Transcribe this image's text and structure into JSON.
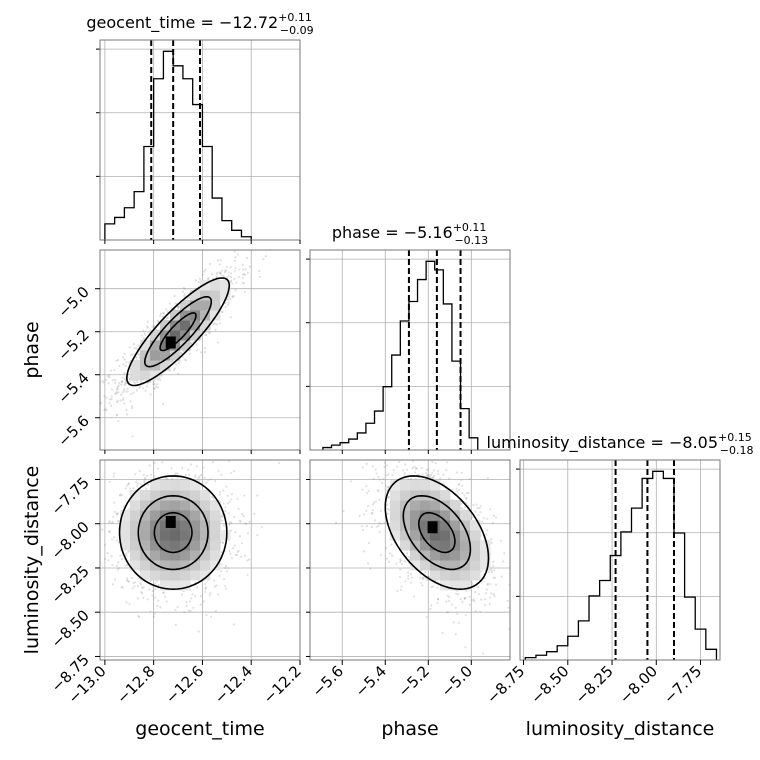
{
  "chart_data": {
    "type": "corner",
    "grid": true,
    "parameters": [
      "geocent_time",
      "phase",
      "luminosity_distance"
    ],
    "axis_labels": {
      "geocent_time": "geocent_time",
      "phase": "phase",
      "luminosity_distance": "luminosity_distance"
    },
    "ranges": {
      "geocent_time": [
        -13.02,
        -12.2
      ],
      "phase": [
        -5.75,
        -4.82
      ],
      "luminosity_distance": [
        -8.77,
        -7.64
      ]
    },
    "ticks": {
      "geocent_time": [
        -13.0,
        -12.8,
        -12.6,
        -12.4,
        -12.2
      ],
      "phase": [
        -5.6,
        -5.4,
        -5.2,
        -5.0
      ],
      "luminosity_distance": [
        -8.75,
        -8.5,
        -8.25,
        -8.0,
        -7.75
      ]
    },
    "tick_labels": {
      "geocent_time": [
        "−13.0",
        "−12.8",
        "−12.6",
        "−12.4",
        "−12.2"
      ],
      "phase": [
        "−5.6",
        "−5.4",
        "−5.2",
        "−5.0"
      ],
      "luminosity_distance": [
        "−8.75",
        "−8.50",
        "−8.25",
        "−8.00",
        "−7.75"
      ]
    },
    "titles": {
      "geocent_time": {
        "main": "geocent_time = −12.72",
        "sup": "+0.11",
        "sub": "−0.09"
      },
      "phase": {
        "main": "phase = −5.16",
        "sup": "+0.11",
        "sub": "−0.13"
      },
      "luminosity_distance": {
        "main": "luminosity_distance = −8.05",
        "sup": "+0.15",
        "sub": "−0.18"
      }
    },
    "quantiles": {
      "geocent_time": [
        -12.81,
        -12.72,
        -12.61
      ],
      "phase": [
        -5.29,
        -5.16,
        -5.05
      ],
      "luminosity_distance": [
        -8.23,
        -8.05,
        -7.9
      ]
    },
    "histograms": {
      "geocent_time": {
        "edges": [
          -13.0,
          -12.96,
          -12.92,
          -12.88,
          -12.84,
          -12.8,
          -12.76,
          -12.72,
          -12.68,
          -12.64,
          -12.6,
          -12.56,
          -12.52,
          -12.48,
          -12.44,
          -12.4
        ],
        "counts": [
          0.1,
          0.14,
          0.2,
          0.3,
          0.58,
          1.0,
          1.17,
          1.08,
          1.0,
          0.84,
          0.58,
          0.26,
          0.12,
          0.06,
          0.02
        ]
      },
      "phase": {
        "edges": [
          -5.69,
          -5.65,
          -5.61,
          -5.57,
          -5.53,
          -5.49,
          -5.45,
          -5.41,
          -5.37,
          -5.33,
          -5.29,
          -5.25,
          -5.21,
          -5.17,
          -5.13,
          -5.09,
          -5.05,
          -5.01,
          -4.97
        ],
        "counts": [
          0.02,
          0.04,
          0.06,
          0.09,
          0.14,
          0.22,
          0.32,
          0.52,
          0.78,
          1.06,
          1.22,
          1.4,
          1.55,
          1.48,
          1.2,
          0.73,
          0.34,
          0.1
        ]
      },
      "luminosity_distance": {
        "edges": [
          -8.74,
          -8.68,
          -8.62,
          -8.56,
          -8.5,
          -8.44,
          -8.38,
          -8.32,
          -8.26,
          -8.2,
          -8.14,
          -8.08,
          -8.02,
          -7.96,
          -7.9,
          -7.84,
          -7.78,
          -7.72,
          -7.66
        ],
        "counts": [
          0.02,
          0.04,
          0.07,
          0.12,
          0.2,
          0.33,
          0.54,
          0.67,
          0.88,
          1.08,
          1.28,
          1.53,
          1.59,
          1.53,
          1.07,
          0.53,
          0.26,
          0.09
        ]
      }
    },
    "pairs": [
      {
        "x": "geocent_time",
        "y": "phase",
        "scatter_center": [
          -12.7,
          -5.2
        ],
        "scatter_sd": [
          0.12,
          0.14
        ],
        "scatter_corr": 0.86,
        "contour_sd": [
          0.105,
          0.125
        ],
        "contour_levels": [
          0.7,
          1.3,
          2.0
        ],
        "peak": [
          -12.73,
          -5.25
        ]
      },
      {
        "x": "geocent_time",
        "y": "luminosity_distance",
        "scatter_center": [
          -12.72,
          -8.05
        ],
        "scatter_sd": [
          0.12,
          0.18
        ],
        "scatter_corr": 0.0,
        "contour_sd": [
          0.11,
          0.16
        ],
        "contour_levels": [
          0.7,
          1.3,
          2.0
        ],
        "peak": [
          -12.73,
          -7.99
        ]
      },
      {
        "x": "phase",
        "y": "luminosity_distance",
        "scatter_center": [
          -5.16,
          -8.05
        ],
        "scatter_sd": [
          0.13,
          0.18
        ],
        "scatter_corr": -0.45,
        "contour_sd": [
          0.12,
          0.16
        ],
        "contour_levels": [
          0.7,
          1.3,
          2.0
        ],
        "peak": [
          -5.18,
          -8.02
        ]
      }
    ]
  }
}
